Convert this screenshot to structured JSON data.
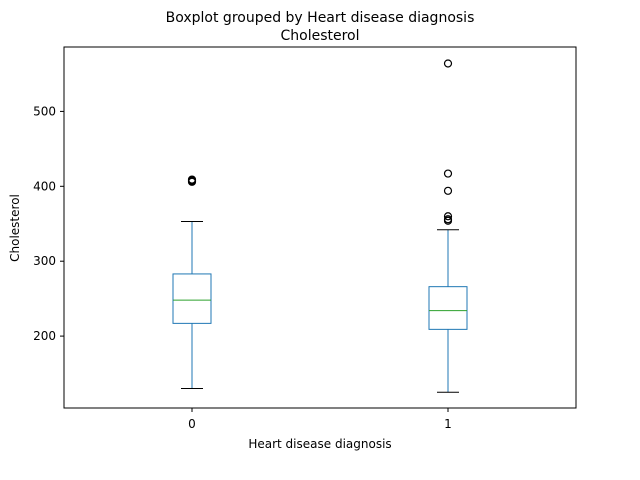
{
  "chart_data": {
    "type": "boxplot",
    "title": "Boxplot grouped by Heart disease diagnosis",
    "subtitle": "Cholesterol",
    "xlabel": "Heart disease diagnosis",
    "ylabel": "Cholesterol",
    "ylim": [
      104,
      586
    ],
    "yticks": [
      200,
      300,
      400,
      500
    ],
    "grid": false,
    "categories": [
      "0",
      "1"
    ],
    "boxes": [
      {
        "category": "0",
        "whisker_low": 130,
        "q1": 217,
        "median": 248,
        "q3": 283,
        "whisker_high": 353,
        "outliers": [
          406,
          407,
          408,
          409
        ]
      },
      {
        "category": "1",
        "whisker_low": 125,
        "q1": 209,
        "median": 234,
        "q3": 266,
        "whisker_high": 342,
        "outliers": [
          354,
          356,
          360,
          394,
          417,
          564
        ]
      }
    ],
    "colors": {
      "box": "#1f77b4",
      "median": "#2ca02c",
      "whisker_cap": "#000000",
      "outlier": "#000000"
    }
  }
}
